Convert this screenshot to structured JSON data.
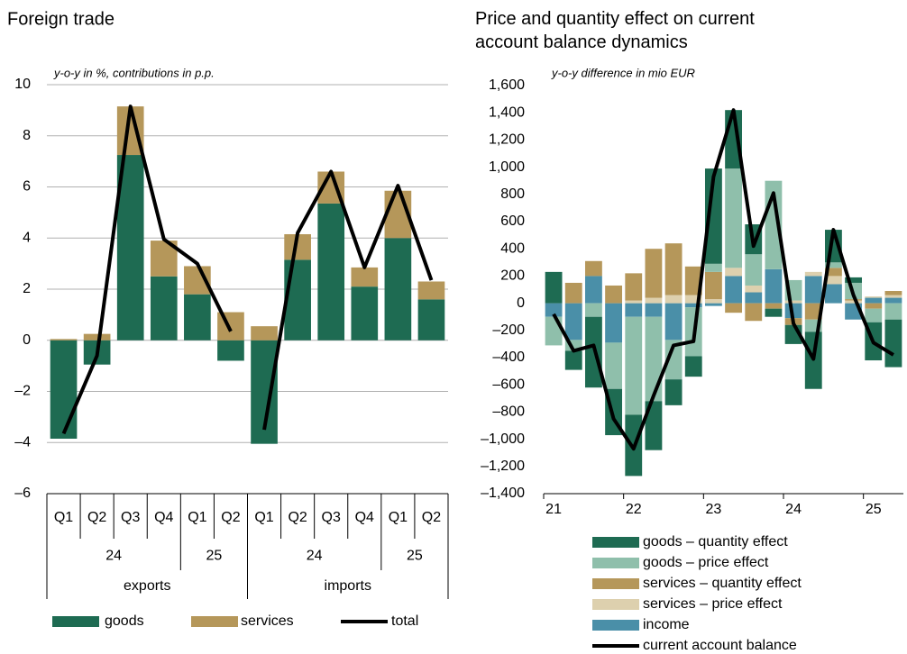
{
  "chart_data": [
    {
      "type": "bar",
      "title": "Foreign trade",
      "subtitle": "y-o-y in %, contributions in p.p.",
      "categories": [
        [
          "Q1",
          "24",
          "exports"
        ],
        [
          "Q2",
          "24",
          "exports"
        ],
        [
          "Q3",
          "24",
          "exports"
        ],
        [
          "Q4",
          "24",
          "exports"
        ],
        [
          "Q1",
          "25",
          "exports"
        ],
        [
          "Q2",
          "25",
          "exports"
        ],
        [
          "Q1",
          "24",
          "imports"
        ],
        [
          "Q2",
          "24",
          "imports"
        ],
        [
          "Q3",
          "24",
          "imports"
        ],
        [
          "Q4",
          "24",
          "imports"
        ],
        [
          "Q1",
          "25",
          "imports"
        ],
        [
          "Q2",
          "25",
          "imports"
        ]
      ],
      "series": [
        {
          "name": "goods",
          "type": "bar",
          "color": "#1e6b52",
          "values": [
            -3.85,
            -0.95,
            7.25,
            2.5,
            1.8,
            -0.8,
            -4.05,
            3.15,
            5.35,
            2.1,
            4.0,
            1.6
          ]
        },
        {
          "name": "services",
          "type": "bar",
          "color": "#b5975a",
          "values": [
            0.05,
            0.25,
            1.9,
            1.4,
            1.1,
            1.1,
            0.55,
            1.0,
            1.25,
            0.75,
            1.85,
            0.7
          ]
        },
        {
          "name": "total",
          "type": "line",
          "color": "#000000",
          "values": [
            -3.65,
            -0.6,
            9.15,
            3.95,
            3.0,
            0.35,
            -3.5,
            4.2,
            6.6,
            2.85,
            6.05,
            2.35
          ]
        }
      ],
      "ylim": [
        -6,
        10
      ],
      "yticks": [
        {
          "value": -6,
          "label": "–6"
        },
        {
          "value": -4,
          "label": "–4"
        },
        {
          "value": -2,
          "label": "–2"
        },
        0,
        2,
        4,
        6,
        8,
        10
      ],
      "grid": true,
      "legend": "bottom"
    },
    {
      "type": "bar",
      "title": "Price and quantity effect on current account balance dynamics",
      "subtitle": "y-o-y difference in mio EUR",
      "categories": [
        "21",
        null,
        null,
        null,
        "22",
        null,
        null,
        null,
        "23",
        null,
        null,
        null,
        "24",
        null,
        null,
        null,
        "25",
        null
      ],
      "series": [
        {
          "name": "goods – quantity effect",
          "type": "bar",
          "color": "#1e6b52",
          "values": [
            230,
            -140,
            -520,
            -340,
            -450,
            -360,
            -190,
            -150,
            700,
            430,
            220,
            -60,
            -140,
            -420,
            240,
            40,
            -280,
            -350
          ]
        },
        {
          "name": "goods – price effect",
          "type": "bar",
          "color": "#8fbfab",
          "values": [
            -210,
            -80,
            -100,
            -340,
            -720,
            -620,
            -290,
            -360,
            60,
            730,
            230,
            650,
            150,
            -90,
            40,
            120,
            -100,
            -120
          ]
        },
        {
          "name": "services – quantity effect",
          "type": "bar",
          "color": "#b5975a",
          "values": [
            0,
            150,
            110,
            130,
            200,
            360,
            380,
            210,
            200,
            -70,
            -130,
            -40,
            -50,
            -120,
            60,
            10,
            -40,
            30
          ]
        },
        {
          "name": "services – price effect",
          "type": "bar",
          "color": "#ddd0ae",
          "values": [
            0,
            0,
            0,
            0,
            20,
            40,
            60,
            60,
            30,
            60,
            50,
            0,
            20,
            30,
            60,
            20,
            10,
            20
          ]
        },
        {
          "name": "income",
          "type": "bar",
          "color": "#4a8fa8",
          "values": [
            -100,
            -270,
            200,
            -290,
            -100,
            -100,
            -270,
            -30,
            -20,
            200,
            80,
            250,
            -110,
            200,
            140,
            -120,
            40,
            40
          ]
        },
        {
          "name": "current account balance",
          "type": "line",
          "color": "#000000",
          "values": [
            -80,
            -350,
            -310,
            -850,
            -1070,
            -680,
            -310,
            -280,
            930,
            1420,
            420,
            810,
            -150,
            -410,
            540,
            60,
            -290,
            -380
          ]
        }
      ],
      "ylim": [
        -1400,
        1600
      ],
      "yticks": [
        {
          "value": -1400,
          "label": "–1,400"
        },
        {
          "value": -1200,
          "label": "–1,200"
        },
        {
          "value": -1000,
          "label": "–1,000"
        },
        {
          "value": -800,
          "label": "–800"
        },
        {
          "value": -600,
          "label": "–600"
        },
        {
          "value": -400,
          "label": "–400"
        },
        {
          "value": -200,
          "label": "–200"
        },
        0,
        200,
        400,
        600,
        800,
        {
          "value": 1000,
          "label": "1,000"
        },
        {
          "value": 1200,
          "label": "1,200"
        },
        {
          "value": 1400,
          "label": "1,400"
        },
        {
          "value": 1600,
          "label": "1,600"
        }
      ],
      "grid": false,
      "legend": "bottom"
    }
  ]
}
